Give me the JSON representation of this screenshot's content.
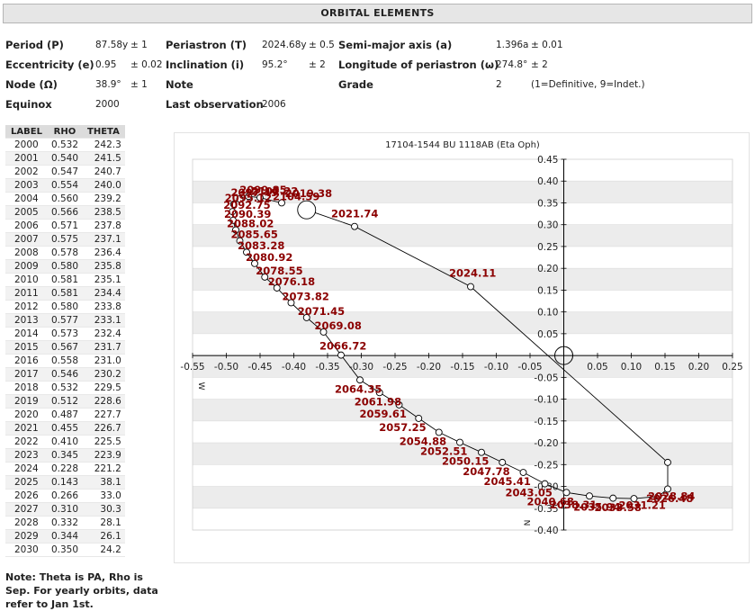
{
  "header": {
    "title": "ORBITAL ELEMENTS"
  },
  "elements": {
    "period_label": "Period (P)",
    "period_value": "87.58y",
    "period_err": "± 1",
    "periastron_label": "Periastron (T)",
    "periastron_value": "2024.68y",
    "periastron_err": "± 0.5",
    "semimajor_label": "Semi-major axis (a)",
    "semimajor_value": "1.396a",
    "semimajor_err": "± 0.01",
    "ecc_label": "Eccentricity (e)",
    "ecc_value": "0.95",
    "ecc_err": "± 0.02",
    "incl_label": "Inclination (i)",
    "incl_value": "95.2°",
    "incl_err": "± 2",
    "longperi_label": "Longitude of periastron (ω)",
    "longperi_value": "274.8°",
    "longperi_err": "± 2",
    "node_label": "Node (Ω)",
    "node_value": "38.9°",
    "node_err": "± 1",
    "note_label": "Note",
    "grade_label": "Grade",
    "grade_value": "2",
    "grade_legend": "(1=Definitive, 9=Indet.)",
    "equinox_label": "Equinox",
    "equinox_value": "2000",
    "lastobs_label": "Last observation",
    "lastobs_value": "2006"
  },
  "table": {
    "headers": [
      "LABEL",
      "RHO",
      "THETA"
    ],
    "rows": [
      [
        "2000",
        "0.532",
        "242.3"
      ],
      [
        "2001",
        "0.540",
        "241.5"
      ],
      [
        "2002",
        "0.547",
        "240.7"
      ],
      [
        "2003",
        "0.554",
        "240.0"
      ],
      [
        "2004",
        "0.560",
        "239.2"
      ],
      [
        "2005",
        "0.566",
        "238.5"
      ],
      [
        "2006",
        "0.571",
        "237.8"
      ],
      [
        "2007",
        "0.575",
        "237.1"
      ],
      [
        "2008",
        "0.578",
        "236.4"
      ],
      [
        "2009",
        "0.580",
        "235.8"
      ],
      [
        "2010",
        "0.581",
        "235.1"
      ],
      [
        "2011",
        "0.581",
        "234.4"
      ],
      [
        "2012",
        "0.580",
        "233.8"
      ],
      [
        "2013",
        "0.577",
        "233.1"
      ],
      [
        "2014",
        "0.573",
        "232.4"
      ],
      [
        "2015",
        "0.567",
        "231.7"
      ],
      [
        "2016",
        "0.558",
        "231.0"
      ],
      [
        "2017",
        "0.546",
        "230.2"
      ],
      [
        "2018",
        "0.532",
        "229.5"
      ],
      [
        "2019",
        "0.512",
        "228.6"
      ],
      [
        "2020",
        "0.487",
        "227.7"
      ],
      [
        "2021",
        "0.455",
        "226.7"
      ],
      [
        "2022",
        "0.410",
        "225.5"
      ],
      [
        "2023",
        "0.345",
        "223.9"
      ],
      [
        "2024",
        "0.228",
        "221.2"
      ],
      [
        "2025",
        "0.143",
        "38.1"
      ],
      [
        "2026",
        "0.266",
        "33.0"
      ],
      [
        "2027",
        "0.310",
        "30.3"
      ],
      [
        "2028",
        "0.332",
        "28.1"
      ],
      [
        "2029",
        "0.344",
        "26.1"
      ],
      [
        "2030",
        "0.350",
        "24.2"
      ]
    ]
  },
  "note": "Note: Theta is PA, Rho is Sep. For yearly orbits, data refer to Jan 1st.",
  "chart_data": {
    "type": "scatter",
    "title": "17104-1544 BU 1118AB (Eta Oph)",
    "xlim": [
      -0.55,
      0.25
    ],
    "ylim": [
      -0.4,
      0.45
    ],
    "x_ticks": [
      "-0.55",
      "-0.50",
      "-0.45",
      "-0.40",
      "-0.35",
      "-0.30",
      "-0.25",
      "-0.20",
      "-0.15",
      "-0.10",
      "-0.05",
      "0.05",
      "0.10",
      "0.15",
      "0.20",
      "0.25"
    ],
    "y_ticks": [
      "0.45",
      "0.40",
      "0.35",
      "0.30",
      "0.25",
      "0.20",
      "0.15",
      "0.10",
      "0.05",
      "-0.05",
      "-0.10",
      "-0.15",
      "-0.20",
      "-0.25",
      "-0.30",
      "-0.35",
      "-0.40"
    ],
    "axis_label_w": "W",
    "axis_label_n": "N",
    "grid": "horizontal-bands",
    "orbit": [
      {
        "label": "2019.38",
        "x": -0.381,
        "y": 0.334
      },
      {
        "label": "2021.74",
        "x": -0.31,
        "y": 0.296
      },
      {
        "label": "2024.11",
        "x": -0.138,
        "y": 0.158
      },
      {
        "label": "2026.48",
        "x": 0.154,
        "y": -0.245
      },
      {
        "label": "2028.84",
        "x": 0.154,
        "y": -0.306
      },
      {
        "label": "2031.21",
        "x": 0.14,
        "y": -0.323
      },
      {
        "label": "2033.58",
        "x": 0.104,
        "y": -0.328
      },
      {
        "label": "2035.94",
        "x": 0.073,
        "y": -0.327
      },
      {
        "label": "2038.31",
        "x": 0.038,
        "y": -0.322
      },
      {
        "label": "2040.68",
        "x": 0.004,
        "y": -0.314
      },
      {
        "label": "2043.05",
        "x": -0.028,
        "y": -0.294
      },
      {
        "label": "2045.41",
        "x": -0.06,
        "y": -0.268
      },
      {
        "label": "2047.78",
        "x": -0.091,
        "y": -0.245
      },
      {
        "label": "2050.15",
        "x": -0.122,
        "y": -0.222
      },
      {
        "label": "2052.51",
        "x": -0.154,
        "y": -0.199
      },
      {
        "label": "2054.88",
        "x": -0.185,
        "y": -0.176
      },
      {
        "label": "2057.25",
        "x": -0.215,
        "y": -0.144
      },
      {
        "label": "2059.61",
        "x": -0.244,
        "y": -0.113
      },
      {
        "label": "2061.98",
        "x": -0.273,
        "y": -0.085
      },
      {
        "label": "2064.35",
        "x": -0.302,
        "y": -0.056
      },
      {
        "label": "2066.72",
        "x": -0.33,
        "y": 0.001
      },
      {
        "label": "2069.08",
        "x": -0.356,
        "y": 0.054
      },
      {
        "label": "2071.45",
        "x": -0.381,
        "y": 0.087
      },
      {
        "label": "2073.82",
        "x": -0.404,
        "y": 0.121
      },
      {
        "label": "2076.18",
        "x": -0.425,
        "y": 0.155
      },
      {
        "label": "2078.55",
        "x": -0.443,
        "y": 0.18
      },
      {
        "label": "2080.92",
        "x": -0.458,
        "y": 0.211
      },
      {
        "label": "2083.28",
        "x": -0.47,
        "y": 0.237
      },
      {
        "label": "2085.65",
        "x": -0.48,
        "y": 0.263
      },
      {
        "label": "2088.02",
        "x": -0.486,
        "y": 0.288
      },
      {
        "label": "2090.39",
        "x": -0.49,
        "y": 0.31
      },
      {
        "label": "2092.75",
        "x": -0.491,
        "y": 0.33
      },
      {
        "label": "2095.12",
        "x": -0.489,
        "y": 0.347
      },
      {
        "label": "2097.49",
        "x": -0.48,
        "y": 0.359
      },
      {
        "label": "2099.85",
        "x": -0.467,
        "y": 0.365
      },
      {
        "label": "2102.22",
        "x": -0.45,
        "y": 0.362
      },
      {
        "label": "2104.59",
        "x": -0.418,
        "y": 0.35
      }
    ],
    "labels_shown": [
      "2019.38",
      "2021.74",
      "2024.11",
      "2026.48",
      "2028.84",
      "2031.21",
      "2033.58",
      "2035.94",
      "2038.31",
      "2040.68",
      "2043.05",
      "2045.41",
      "2047.78",
      "2050.15",
      "2052.51",
      "2054.88",
      "2057.25",
      "2059.61",
      "2061.98",
      "2064.35",
      "2066.72",
      "2069.08",
      "2071.45",
      "2073.82",
      "2076.18",
      "2078.55",
      "2080.92",
      "2083.28",
      "2085.65",
      "2088.02",
      "2090.39",
      "2092.75",
      "2095.12",
      "2097.49",
      "2099.85",
      "2102.22",
      "2104.59"
    ],
    "colors": {
      "label": "#8b0000",
      "line": "#000000",
      "band": "#ececec"
    }
  }
}
